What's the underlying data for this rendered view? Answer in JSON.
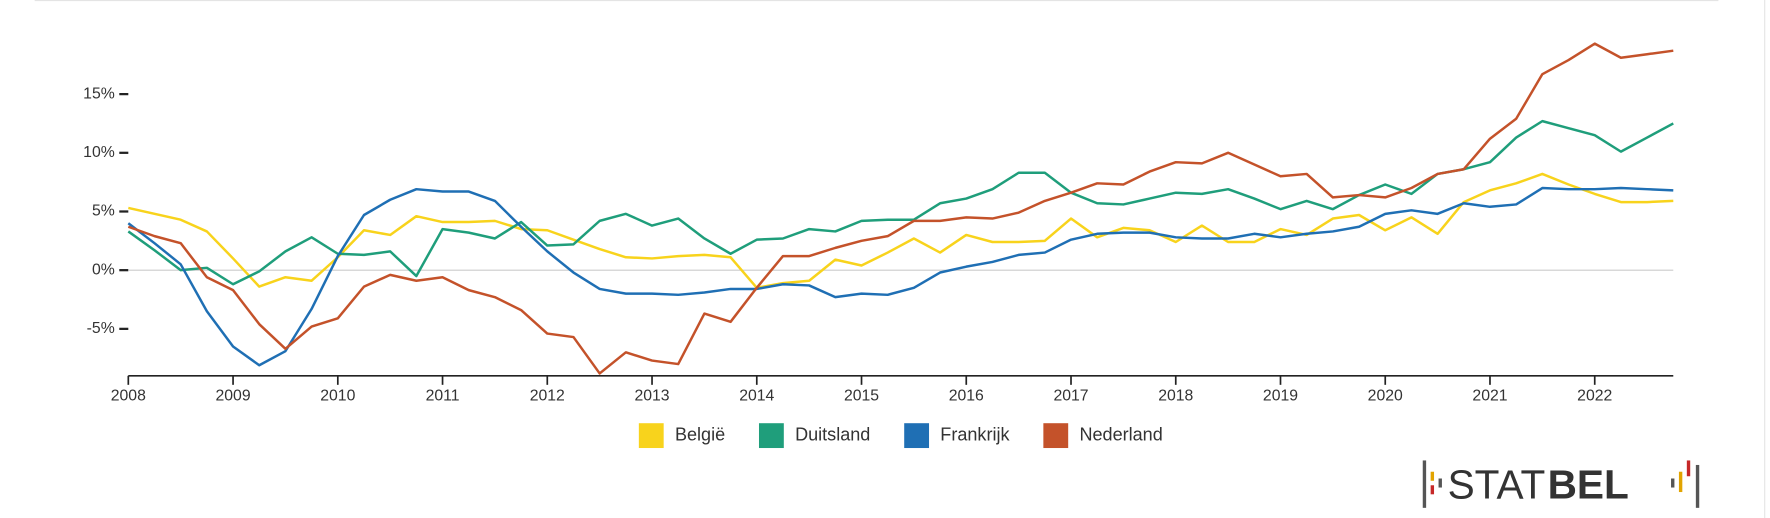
{
  "chart_data": {
    "type": "line",
    "x": [
      2008,
      2008.25,
      2008.5,
      2008.75,
      2009,
      2009.25,
      2009.5,
      2009.75,
      2010,
      2010.25,
      2010.5,
      2010.75,
      2011,
      2011.25,
      2011.5,
      2011.75,
      2012,
      2012.25,
      2012.5,
      2012.75,
      2013,
      2013.25,
      2013.5,
      2013.75,
      2014,
      2014.25,
      2014.5,
      2014.75,
      2015,
      2015.25,
      2015.5,
      2015.75,
      2016,
      2016.25,
      2016.5,
      2016.75,
      2017,
      2017.25,
      2017.5,
      2017.75,
      2018,
      2018.25,
      2018.5,
      2018.75,
      2019,
      2019.25,
      2019.5,
      2019.75,
      2020,
      2020.25,
      2020.5,
      2020.75,
      2021,
      2021.25,
      2021.5,
      2021.75,
      2022,
      2022.25,
      2022.5,
      2022.75
    ],
    "series": [
      {
        "name": "België",
        "color": "#f8d31c",
        "values": [
          5.3,
          4.8,
          4.3,
          3.3,
          1.0,
          -1.4,
          -0.6,
          -0.9,
          1.1,
          3.4,
          3.0,
          4.6,
          4.1,
          4.1,
          4.2,
          3.5,
          3.4,
          2.6,
          1.8,
          1.1,
          1.0,
          1.2,
          1.3,
          1.1,
          -1.5,
          -1.1,
          -0.9,
          0.9,
          0.4,
          1.5,
          2.7,
          1.5,
          3.0,
          2.4,
          2.4,
          2.5,
          4.4,
          2.8,
          3.6,
          3.4,
          2.4,
          3.8,
          2.4,
          2.4,
          3.5,
          3.0,
          4.4,
          4.7,
          3.4,
          4.5,
          3.1,
          5.8,
          6.8,
          7.4,
          8.2,
          7.3,
          6.5,
          5.8,
          5.8,
          5.9
        ]
      },
      {
        "name": "Duitsland",
        "color": "#1f9e7b",
        "values": [
          3.3,
          1.7,
          0.0,
          0.2,
          -1.2,
          -0.1,
          1.6,
          2.8,
          1.4,
          1.3,
          1.6,
          -0.5,
          3.5,
          3.2,
          2.7,
          4.1,
          2.1,
          2.2,
          4.2,
          4.8,
          3.8,
          4.4,
          2.7,
          1.4,
          2.6,
          2.7,
          3.5,
          3.3,
          4.2,
          4.3,
          4.3,
          5.7,
          6.1,
          6.9,
          8.3,
          8.3,
          6.6,
          5.7,
          5.6,
          6.1,
          6.6,
          6.5,
          6.9,
          6.1,
          5.2,
          5.9,
          5.2,
          6.4,
          7.3,
          6.5,
          8.2,
          8.6,
          9.2,
          11.3,
          12.7,
          12.1,
          11.5,
          10.1,
          11.3,
          12.5
        ]
      },
      {
        "name": "Frankrijk",
        "color": "#1f6fb4",
        "values": [
          4.0,
          2.3,
          0.5,
          -3.5,
          -6.5,
          -8.1,
          -6.9,
          -3.3,
          1.2,
          4.7,
          6.0,
          6.9,
          6.7,
          6.7,
          5.9,
          3.7,
          1.6,
          -0.2,
          -1.6,
          -2.0,
          -2.0,
          -2.1,
          -1.9,
          -1.6,
          -1.6,
          -1.2,
          -1.3,
          -2.3,
          -2.0,
          -2.1,
          -1.5,
          -0.2,
          0.3,
          0.7,
          1.3,
          1.5,
          2.6,
          3.1,
          3.2,
          3.2,
          2.8,
          2.7,
          2.7,
          3.1,
          2.8,
          3.1,
          3.3,
          3.7,
          4.8,
          5.1,
          4.8,
          5.7,
          5.4,
          5.6,
          7.0,
          6.9,
          6.9,
          7.0,
          6.9,
          6.8
        ]
      },
      {
        "name": "Nederland",
        "color": "#c4522a",
        "values": [
          3.7,
          2.9,
          2.3,
          -0.6,
          -1.7,
          -4.6,
          -6.7,
          -4.8,
          -4.1,
          -1.4,
          -0.4,
          -0.9,
          -0.6,
          -1.7,
          -2.3,
          -3.4,
          -5.4,
          -5.7,
          -8.8,
          -7.0,
          -7.7,
          -8.0,
          -3.7,
          -4.4,
          -1.5,
          1.2,
          1.2,
          1.9,
          2.5,
          2.9,
          4.2,
          4.2,
          4.5,
          4.4,
          4.9,
          5.9,
          6.6,
          7.4,
          7.3,
          8.4,
          9.2,
          9.1,
          10.0,
          9.0,
          8.0,
          8.2,
          6.2,
          6.4,
          6.2,
          7.0,
          8.2,
          8.6,
          11.2,
          12.9,
          16.7,
          17.9,
          19.3,
          18.1,
          18.4,
          18.7
        ]
      }
    ],
    "xlim": [
      2008,
      2022.75
    ],
    "xticks": [
      2008,
      2009,
      2010,
      2011,
      2012,
      2013,
      2014,
      2015,
      2016,
      2017,
      2018,
      2019,
      2020,
      2021,
      2022
    ],
    "ylim": [
      -9,
      21
    ],
    "yticks": [
      {
        "value": -5,
        "label": "-5%"
      },
      {
        "value": 0,
        "label": "0%"
      },
      {
        "value": 5,
        "label": "5%"
      },
      {
        "value": 10,
        "label": "10%"
      },
      {
        "value": 15,
        "label": "15%"
      }
    ],
    "zero_line": true,
    "legend": "bottom",
    "logo": [
      "STAT",
      "BEL"
    ]
  }
}
